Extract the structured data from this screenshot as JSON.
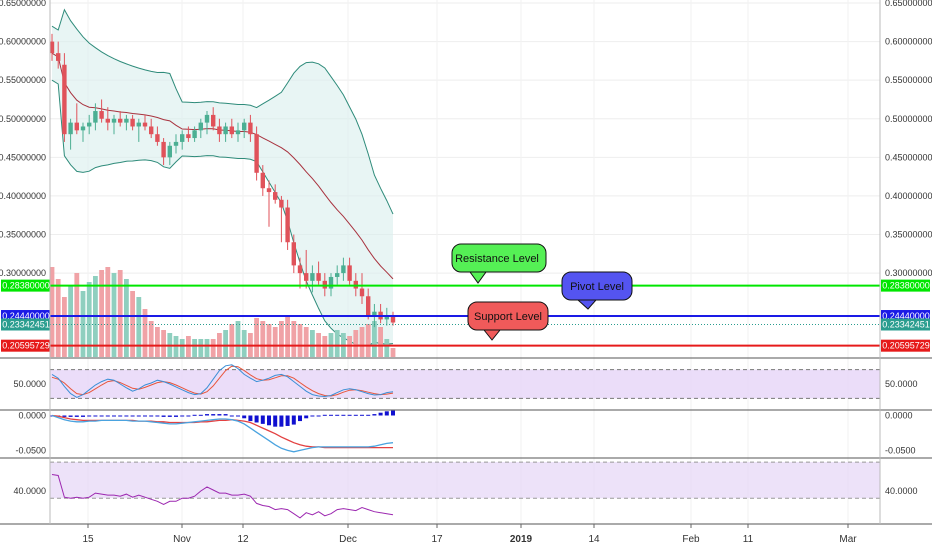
{
  "colors": {
    "up": "#4caf93",
    "down": "#e0525a",
    "vol_up": "#8fcfbf",
    "vol_down": "#f0a2a6",
    "band": "#2e8b7a",
    "band_fill": "#d8efed",
    "basis": "#a8323e",
    "resistance": "#00e600",
    "pivot": "#1a1ae6",
    "support": "#e61a1a",
    "current": "#2a9d8f",
    "stoch_k": "#3b8fd6",
    "stoch_d": "#e8553b",
    "osc_band": "#e6d5f7",
    "macd_line": "#4aa3df",
    "macd_signal": "#e34141",
    "macd_hist": "#1010d0",
    "rsi": "#9c27b0"
  },
  "chart_data": [
    {
      "type": "candlestick",
      "panel": "price",
      "y_ticks": [
        "0.65000000",
        "0.60000000",
        "0.55000000",
        "0.50000000",
        "0.45000000",
        "0.40000000",
        "0.35000000",
        "0.30000000"
      ],
      "ylim": [
        0.19,
        0.65
      ],
      "x_ticks": [
        "15",
        "Nov",
        "12",
        "Dec",
        "17",
        "2019",
        "14",
        "Feb",
        "11",
        "Mar"
      ],
      "candles": [
        [
          0.6,
          0.61,
          0.575,
          0.585
        ],
        [
          0.585,
          0.6,
          0.565,
          0.575
        ],
        [
          0.57,
          0.585,
          0.47,
          0.48
        ],
        [
          0.48,
          0.5,
          0.46,
          0.495
        ],
        [
          0.495,
          0.52,
          0.48,
          0.485
        ],
        [
          0.485,
          0.495,
          0.47,
          0.49
        ],
        [
          0.49,
          0.505,
          0.48,
          0.495
        ],
        [
          0.495,
          0.52,
          0.485,
          0.51
        ],
        [
          0.51,
          0.525,
          0.495,
          0.5
        ],
        [
          0.5,
          0.515,
          0.485,
          0.495
        ],
        [
          0.495,
          0.505,
          0.48,
          0.5
        ],
        [
          0.5,
          0.51,
          0.49,
          0.495
        ],
        [
          0.495,
          0.505,
          0.485,
          0.5
        ],
        [
          0.5,
          0.505,
          0.485,
          0.49
        ],
        [
          0.49,
          0.5,
          0.47,
          0.495
        ],
        [
          0.495,
          0.505,
          0.485,
          0.49
        ],
        [
          0.49,
          0.5,
          0.475,
          0.48
        ],
        [
          0.48,
          0.49,
          0.465,
          0.47
        ],
        [
          0.47,
          0.475,
          0.44,
          0.45
        ],
        [
          0.45,
          0.47,
          0.44,
          0.465
        ],
        [
          0.465,
          0.48,
          0.455,
          0.47
        ],
        [
          0.47,
          0.485,
          0.46,
          0.48
        ],
        [
          0.48,
          0.49,
          0.47,
          0.475
        ],
        [
          0.475,
          0.49,
          0.47,
          0.485
        ],
        [
          0.485,
          0.5,
          0.475,
          0.495
        ],
        [
          0.495,
          0.51,
          0.48,
          0.505
        ],
        [
          0.505,
          0.515,
          0.485,
          0.49
        ],
        [
          0.49,
          0.5,
          0.47,
          0.48
        ],
        [
          0.48,
          0.495,
          0.47,
          0.49
        ],
        [
          0.49,
          0.5,
          0.475,
          0.48
        ],
        [
          0.48,
          0.495,
          0.47,
          0.485
        ],
        [
          0.485,
          0.5,
          0.475,
          0.495
        ],
        [
          0.495,
          0.505,
          0.47,
          0.48
        ],
        [
          0.48,
          0.49,
          0.42,
          0.43
        ],
        [
          0.43,
          0.44,
          0.4,
          0.41
        ],
        [
          0.41,
          0.42,
          0.36,
          0.405
        ],
        [
          0.405,
          0.415,
          0.39,
          0.395
        ],
        [
          0.395,
          0.4,
          0.34,
          0.385
        ],
        [
          0.385,
          0.395,
          0.33,
          0.34
        ],
        [
          0.34,
          0.35,
          0.3,
          0.31
        ],
        [
          0.31,
          0.32,
          0.28,
          0.3
        ],
        [
          0.3,
          0.33,
          0.28,
          0.29
        ],
        [
          0.29,
          0.31,
          0.275,
          0.3
        ],
        [
          0.3,
          0.315,
          0.285,
          0.29
        ],
        [
          0.29,
          0.3,
          0.27,
          0.28
        ],
        [
          0.28,
          0.3,
          0.27,
          0.295
        ],
        [
          0.295,
          0.31,
          0.285,
          0.3
        ],
        [
          0.3,
          0.32,
          0.29,
          0.31
        ],
        [
          0.31,
          0.32,
          0.285,
          0.29
        ],
        [
          0.29,
          0.3,
          0.27,
          0.28
        ],
        [
          0.28,
          0.3,
          0.26,
          0.27
        ],
        [
          0.27,
          0.28,
          0.24,
          0.245
        ],
        [
          0.245,
          0.26,
          0.23,
          0.25
        ],
        [
          0.25,
          0.26,
          0.235,
          0.24
        ],
        [
          0.24,
          0.255,
          0.232,
          0.245
        ],
        [
          0.245,
          0.25,
          0.232,
          0.236
        ]
      ]
    },
    {
      "type": "bar",
      "panel": "volume",
      "values": [
        30,
        26,
        20,
        24,
        28,
        22,
        25,
        27,
        29,
        30,
        28,
        29,
        26,
        22,
        20,
        16,
        12,
        10,
        9,
        8,
        7,
        6,
        7,
        6,
        6,
        6,
        6,
        8,
        9,
        11,
        12,
        9,
        8,
        13,
        12,
        11,
        10,
        12,
        14,
        12,
        11,
        10,
        9,
        8,
        7,
        8,
        9,
        8,
        7,
        9,
        10,
        11,
        12,
        10,
        6,
        3
      ]
    },
    {
      "type": "line",
      "panel": "stochastic",
      "y_ticks": [
        "50.0000"
      ],
      "series": [
        {
          "values": [
            70,
            62,
            45,
            30,
            22,
            28,
            38,
            48,
            55,
            60,
            58,
            50,
            42,
            35,
            40,
            48,
            52,
            58,
            55,
            50,
            44,
            38,
            32,
            28,
            30,
            42,
            60,
            78,
            88,
            90,
            82,
            70,
            62,
            55,
            58,
            62,
            68,
            70,
            65,
            55,
            45,
            35,
            28,
            25,
            24,
            26,
            32,
            38,
            40,
            38,
            34,
            30,
            27,
            28,
            32,
            34
          ]
        },
        {
          "values": [
            64,
            60,
            52,
            40,
            30,
            28,
            32,
            40,
            48,
            55,
            57,
            53,
            47,
            41,
            39,
            43,
            48,
            53,
            55,
            53,
            48,
            42,
            36,
            31,
            29,
            34,
            46,
            62,
            78,
            87,
            86,
            78,
            69,
            61,
            58,
            59,
            63,
            67,
            67,
            62,
            53,
            44,
            36,
            30,
            26,
            25,
            28,
            33,
            37,
            38,
            36,
            33,
            30,
            28,
            29,
            31
          ]
        }
      ]
    },
    {
      "type": "bar",
      "panel": "macd",
      "y_ticks": [
        "0.0000",
        "-0.0500"
      ],
      "series": [
        {
          "values": [
            0.0,
            -0.003,
            -0.006,
            -0.008,
            -0.009,
            -0.009,
            -0.008,
            -0.008,
            -0.007,
            -0.007,
            -0.007,
            -0.007,
            -0.007,
            -0.008,
            -0.008,
            -0.008,
            -0.009,
            -0.01,
            -0.011,
            -0.012,
            -0.012,
            -0.011,
            -0.01,
            -0.009,
            -0.008,
            -0.007,
            -0.006,
            -0.005,
            -0.005,
            -0.006,
            -0.008,
            -0.012,
            -0.018,
            -0.024,
            -0.03,
            -0.036,
            -0.042,
            -0.047,
            -0.05,
            -0.052,
            -0.05,
            -0.048,
            -0.046,
            -0.045,
            -0.045,
            -0.045,
            -0.045,
            -0.045,
            -0.045,
            -0.045,
            -0.045,
            -0.045,
            -0.044,
            -0.042,
            -0.04,
            -0.039
          ]
        },
        {
          "values": [
            0.0,
            -0.001,
            -0.003,
            -0.005,
            -0.006,
            -0.007,
            -0.007,
            -0.007,
            -0.007,
            -0.007,
            -0.007,
            -0.007,
            -0.007,
            -0.007,
            -0.008,
            -0.008,
            -0.008,
            -0.009,
            -0.009,
            -0.01,
            -0.01,
            -0.01,
            -0.01,
            -0.01,
            -0.009,
            -0.009,
            -0.008,
            -0.007,
            -0.007,
            -0.006,
            -0.007,
            -0.008,
            -0.01,
            -0.014,
            -0.018,
            -0.022,
            -0.026,
            -0.031,
            -0.035,
            -0.039,
            -0.042,
            -0.044,
            -0.045,
            -0.045,
            -0.046,
            -0.046,
            -0.046,
            -0.046,
            -0.046,
            -0.046,
            -0.046,
            -0.046,
            -0.046,
            -0.046,
            -0.046,
            -0.046
          ]
        },
        {
          "values": [
            0.0,
            0.0,
            -0.002,
            -0.002,
            -0.002,
            -0.002,
            -0.001,
            -0.001,
            0.0,
            0.0,
            0.0,
            0.0,
            0.0,
            0.0,
            0.0,
            0.0,
            -0.001,
            -0.001,
            -0.002,
            -0.002,
            -0.002,
            -0.001,
            0.0,
            0.001,
            0.001,
            0.002,
            0.002,
            0.002,
            0.002,
            0.0,
            -0.001,
            -0.004,
            -0.008,
            -0.01,
            -0.012,
            -0.014,
            -0.016,
            -0.016,
            -0.015,
            -0.013,
            -0.008,
            -0.004,
            -0.001,
            0.0,
            0.001,
            0.001,
            0.001,
            0.001,
            0.001,
            0.001,
            0.001,
            0.001,
            0.002,
            0.004,
            0.006,
            0.007
          ]
        }
      ]
    },
    {
      "type": "line",
      "panel": "rsi",
      "y_ticks": [
        "40.0000"
      ],
      "series": [
        {
          "values": [
            56,
            55,
            34,
            33,
            34,
            33,
            34,
            38,
            37,
            36,
            36,
            35,
            37,
            34,
            36,
            34,
            32,
            30,
            27,
            30,
            30,
            33,
            33,
            35,
            40,
            44,
            41,
            38,
            38,
            36,
            36,
            37,
            35,
            28,
            26,
            25,
            22,
            23,
            22,
            18,
            14,
            19,
            17,
            20,
            16,
            18,
            22,
            23,
            22,
            21,
            24,
            22,
            20,
            19,
            18,
            17
          ]
        }
      ]
    }
  ],
  "levels": {
    "resistance": {
      "value": "0.28380000",
      "label": "Resistance Level"
    },
    "pivot": {
      "value": "0.24440000",
      "label": "Pivot Level"
    },
    "current": {
      "value": "0.23342451"
    },
    "support": {
      "value": "0.20595729",
      "label": "Support Level"
    }
  }
}
